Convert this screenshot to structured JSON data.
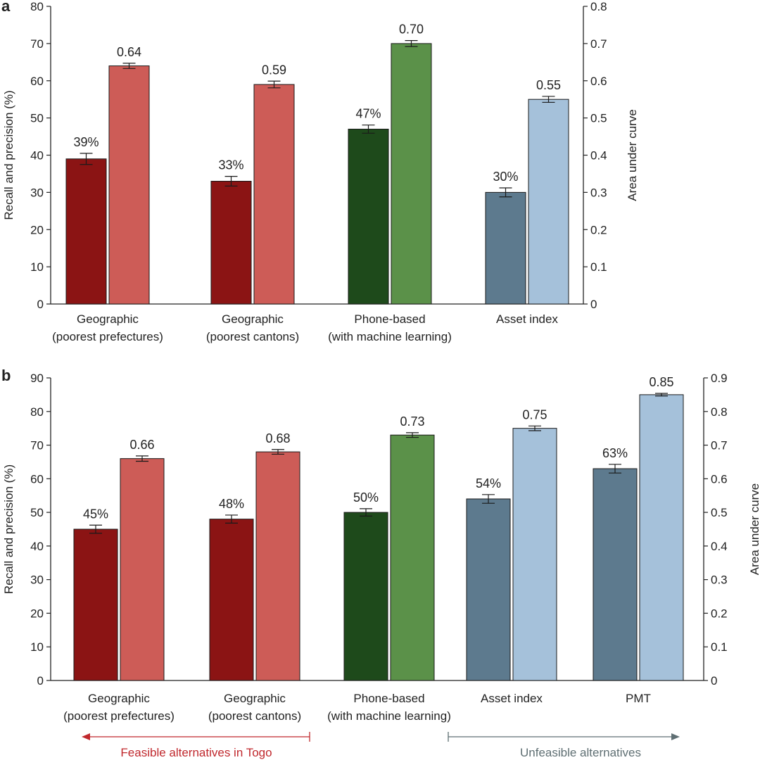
{
  "chart_data": [
    {
      "panel": "a",
      "type": "bar",
      "ylabel": "Recall and precision (%)",
      "ylabel_right": "Area under curve",
      "ylim": [
        0,
        80
      ],
      "ylim_right": [
        0,
        0.8
      ],
      "yticks": [
        "0",
        "10",
        "20",
        "30",
        "40",
        "50",
        "60",
        "70",
        "80"
      ],
      "yticks_right": [
        "0",
        "0.1",
        "0.2",
        "0.3",
        "0.4",
        "0.5",
        "0.6",
        "0.7",
        "0.8"
      ],
      "groups": [
        {
          "label_line1": "Geographic",
          "label_line2": "(poorest prefectures)",
          "recall": 39,
          "recall_err": 1.5,
          "recall_label": "39%",
          "auc": 0.64,
          "auc_err": 0.007,
          "auc_label": "0.64",
          "color_dark": "#8b1414",
          "color_light": "#cd5c57"
        },
        {
          "label_line1": "Geographic",
          "label_line2": "(poorest cantons)",
          "recall": 33,
          "recall_err": 1.3,
          "recall_label": "33%",
          "auc": 0.59,
          "auc_err": 0.009,
          "auc_label": "0.59",
          "color_dark": "#8b1414",
          "color_light": "#cd5c57"
        },
        {
          "label_line1": "Phone-based",
          "label_line2": "(with machine learning)",
          "recall": 47,
          "recall_err": 1.1,
          "recall_label": "47%",
          "auc": 0.7,
          "auc_err": 0.008,
          "auc_label": "0.70",
          "color_dark": "#1e4a1b",
          "color_light": "#5b9149"
        },
        {
          "label_line1": "Asset index",
          "label_line2": "",
          "recall": 30,
          "recall_err": 1.2,
          "recall_label": "30%",
          "auc": 0.55,
          "auc_err": 0.008,
          "auc_label": "0.55",
          "color_dark": "#5d7a8e",
          "color_light": "#a5c1da"
        }
      ]
    },
    {
      "panel": "b",
      "type": "bar",
      "ylabel": "Recall and precision (%)",
      "ylabel_right": "Area under curve",
      "ylim": [
        0,
        90
      ],
      "ylim_right": [
        0,
        0.9
      ],
      "yticks": [
        "0",
        "10",
        "20",
        "30",
        "40",
        "50",
        "60",
        "70",
        "80",
        "90"
      ],
      "yticks_right": [
        "0",
        "0.1",
        "0.2",
        "0.3",
        "0.4",
        "0.5",
        "0.6",
        "0.7",
        "0.8",
        "0.9"
      ],
      "groups": [
        {
          "label_line1": "Geographic",
          "label_line2": "(poorest prefectures)",
          "recall": 45,
          "recall_err": 1.2,
          "recall_label": "45%",
          "auc": 0.66,
          "auc_err": 0.008,
          "auc_label": "0.66",
          "color_dark": "#8b1414",
          "color_light": "#cd5c57"
        },
        {
          "label_line1": "Geographic",
          "label_line2": "(poorest cantons)",
          "recall": 48,
          "recall_err": 1.2,
          "recall_label": "48%",
          "auc": 0.68,
          "auc_err": 0.007,
          "auc_label": "0.68",
          "color_dark": "#8b1414",
          "color_light": "#cd5c57"
        },
        {
          "label_line1": "Phone-based",
          "label_line2": "(with machine learning)",
          "recall": 50,
          "recall_err": 1.1,
          "recall_label": "50%",
          "auc": 0.73,
          "auc_err": 0.007,
          "auc_label": "0.73",
          "color_dark": "#1e4a1b",
          "color_light": "#5b9149"
        },
        {
          "label_line1": "Asset index",
          "label_line2": "",
          "recall": 54,
          "recall_err": 1.3,
          "recall_label": "54%",
          "auc": 0.75,
          "auc_err": 0.007,
          "auc_label": "0.75",
          "color_dark": "#5d7a8e",
          "color_light": "#a5c1da"
        },
        {
          "label_line1": "PMT",
          "label_line2": "",
          "recall": 63,
          "recall_err": 1.3,
          "recall_label": "63%",
          "auc": 0.85,
          "auc_err": 0.004,
          "auc_label": "0.85",
          "color_dark": "#5d7a8e",
          "color_light": "#a5c1da"
        }
      ],
      "annotations": {
        "feasible": "Feasible alternatives in Togo",
        "unfeasible": "Unfeasible alternatives",
        "feasible_color": "#c0282d",
        "unfeasible_color": "#5f6f73"
      }
    }
  ]
}
